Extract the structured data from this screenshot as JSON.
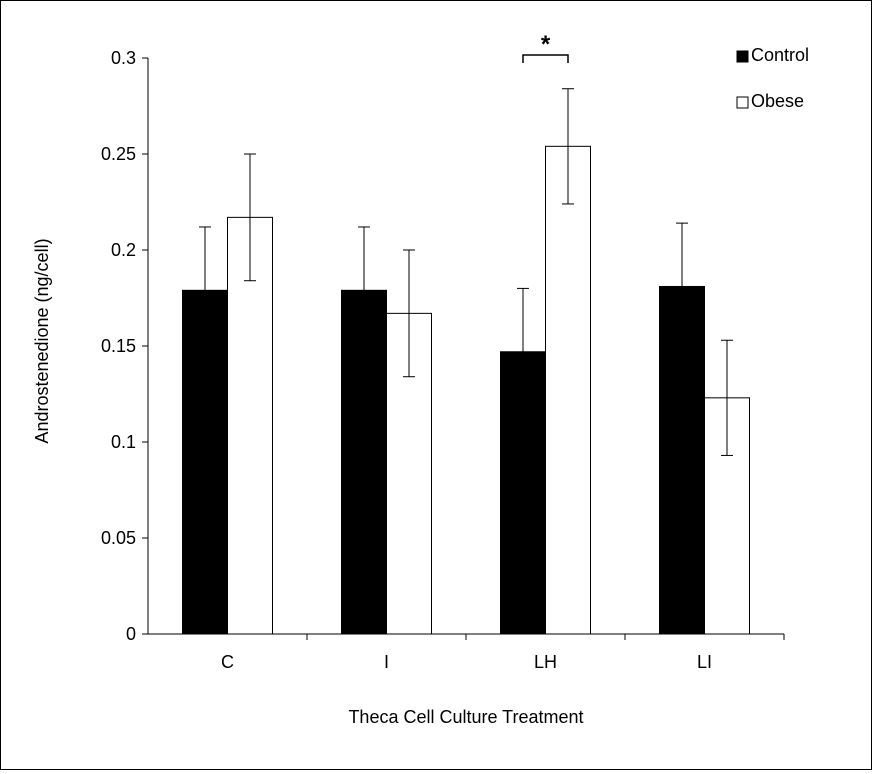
{
  "chart_data": {
    "type": "bar",
    "title": "",
    "xlabel": "Theca Cell Culture Treatment",
    "ylabel": "Androstenedione (ng/cell)",
    "categories": [
      "C",
      "I",
      "LH",
      "LI"
    ],
    "ylim": [
      0,
      0.3
    ],
    "yticks": [
      0,
      0.05,
      0.1,
      0.15,
      0.2,
      0.25,
      0.3
    ],
    "ytick_labels": [
      "0",
      "0.05",
      "0.1",
      "0.15",
      "0.2",
      "0.25",
      "0.3"
    ],
    "grid": false,
    "legend_position": "top-right",
    "series": [
      {
        "name": "Control",
        "color": "#000000",
        "values": [
          0.179,
          0.179,
          0.147,
          0.181
        ],
        "errors": [
          0.033,
          0.033,
          0.033,
          0.033
        ]
      },
      {
        "name": "Obese",
        "color": "#ffffff",
        "values": [
          0.217,
          0.167,
          0.254,
          0.123
        ],
        "errors": [
          0.033,
          0.033,
          0.03,
          0.03
        ]
      }
    ],
    "annotations": [
      {
        "text": "*",
        "category": "LH",
        "spans_series": [
          "Control",
          "Obese"
        ]
      }
    ]
  }
}
